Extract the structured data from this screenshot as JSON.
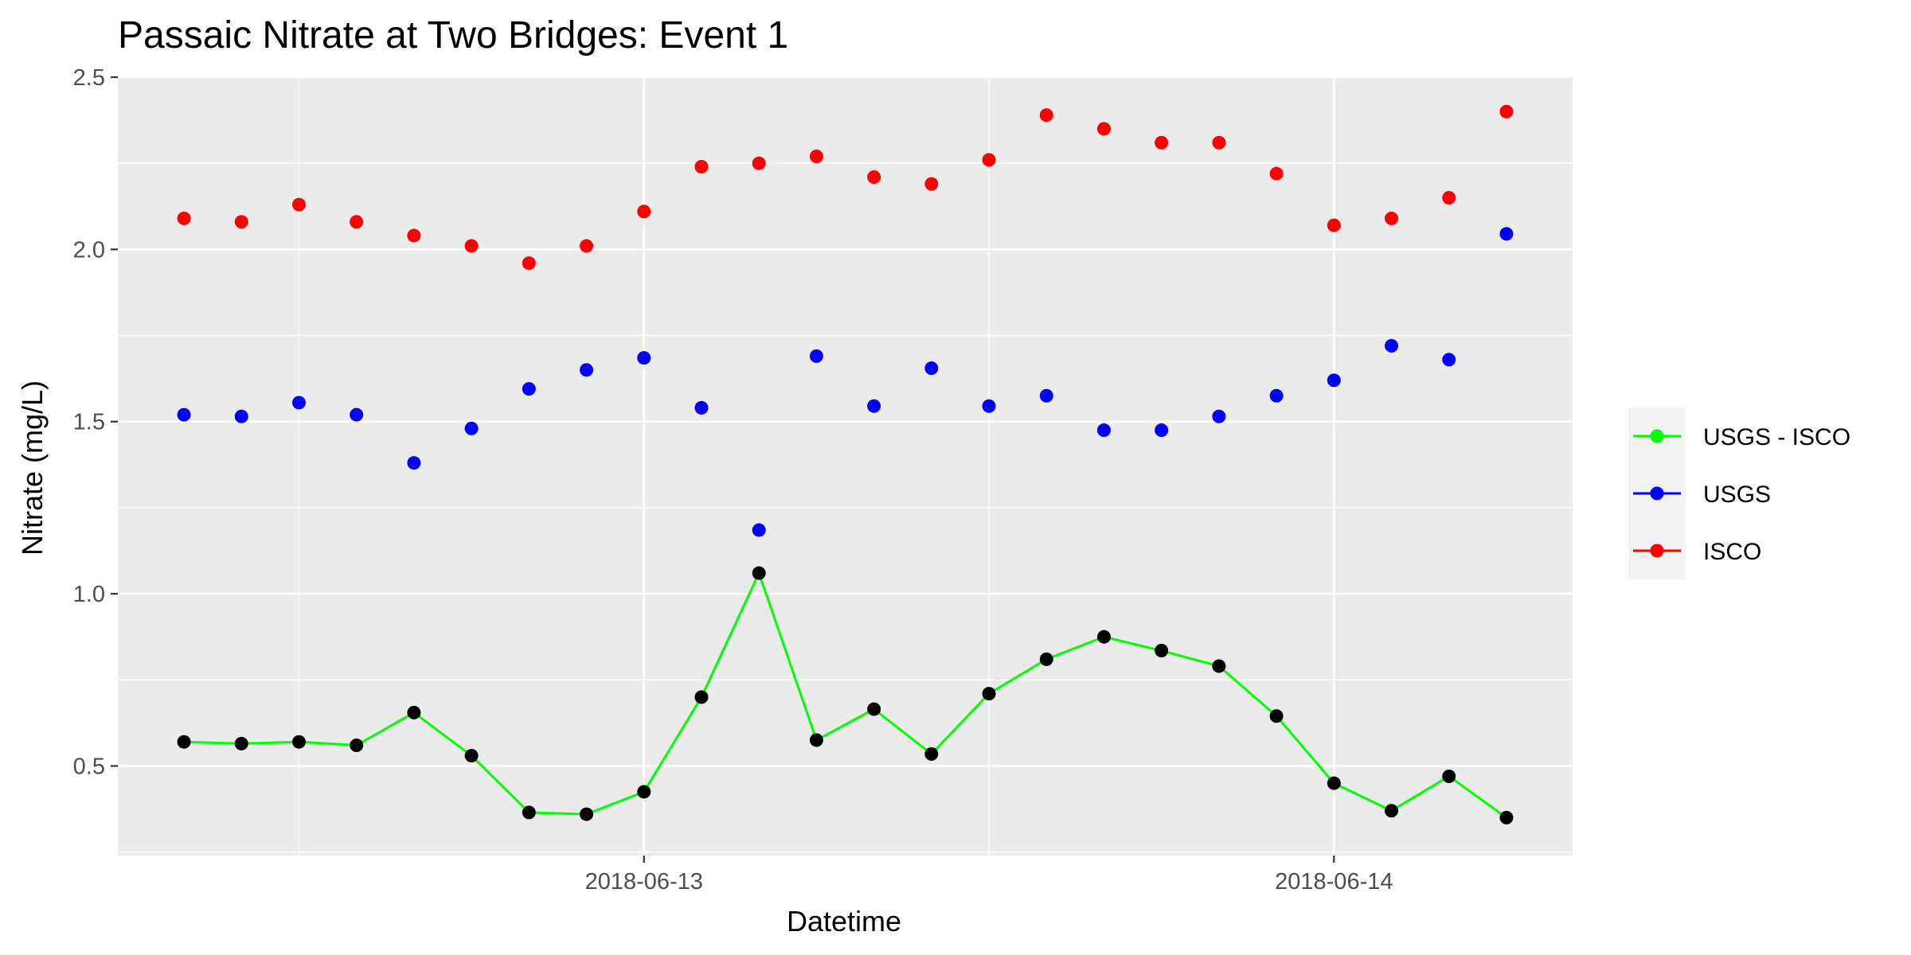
{
  "chart_data": {
    "type": "scatter",
    "title": "Passaic Nitrate at Two Bridges: Event 1",
    "xlabel": "Datetime",
    "ylabel": "Nitrate (mg/L)",
    "x_axis": "datetime",
    "x_tick_labels": [
      "2018-06-13",
      "2018-06-14"
    ],
    "ylim": [
      0.24,
      2.5
    ],
    "y_ticks": [
      0.5,
      1.0,
      1.5,
      2.0,
      2.5
    ],
    "y_tick_labels": [
      "0.5",
      "1.0",
      "1.5",
      "2.0",
      "2.5"
    ],
    "grid": true,
    "legend_position": "right",
    "x": [
      "2018-06-12 08:00",
      "2018-06-12 10:00",
      "2018-06-12 12:00",
      "2018-06-12 14:00",
      "2018-06-12 16:00",
      "2018-06-12 18:00",
      "2018-06-12 20:00",
      "2018-06-12 22:00",
      "2018-06-13 00:00",
      "2018-06-13 02:00",
      "2018-06-13 04:00",
      "2018-06-13 06:00",
      "2018-06-13 08:00",
      "2018-06-13 10:00",
      "2018-06-13 12:00",
      "2018-06-13 14:00",
      "2018-06-13 16:00",
      "2018-06-13 18:00",
      "2018-06-13 20:00",
      "2018-06-13 22:00",
      "2018-06-14 00:00",
      "2018-06-14 02:00",
      "2018-06-14 04:00",
      "2018-06-14 06:00"
    ],
    "series": [
      {
        "name": "USGS - ISCO",
        "color": "#00ff00",
        "marker_color": "#000000",
        "style": "line+points",
        "values": [
          0.57,
          0.565,
          0.57,
          0.56,
          0.655,
          0.53,
          0.365,
          0.36,
          0.425,
          0.7,
          1.06,
          0.575,
          0.665,
          0.535,
          0.71,
          0.81,
          0.875,
          0.835,
          0.79,
          0.645,
          0.45,
          0.37,
          0.47,
          0.35
        ]
      },
      {
        "name": "USGS",
        "color": "#0000ff",
        "style": "points",
        "values": [
          1.52,
          1.515,
          1.555,
          1.52,
          1.38,
          1.48,
          1.595,
          1.65,
          1.685,
          1.54,
          1.185,
          1.69,
          1.545,
          1.655,
          1.545,
          1.575,
          1.475,
          1.475,
          1.515,
          1.575,
          1.62,
          1.72,
          1.68,
          2.045
        ]
      },
      {
        "name": "ISCO",
        "color": "#ff0000",
        "style": "points",
        "values": [
          2.09,
          2.08,
          2.13,
          2.08,
          2.04,
          2.01,
          1.96,
          2.01,
          2.11,
          2.24,
          2.25,
          2.27,
          2.21,
          2.19,
          2.26,
          2.39,
          2.35,
          2.31,
          2.31,
          2.22,
          2.07,
          2.09,
          2.15,
          2.4
        ]
      }
    ]
  },
  "colors": {
    "panel_background": "#ebebeb",
    "grid": "#ffffff",
    "legend_key_background": "#f2f2f2"
  }
}
